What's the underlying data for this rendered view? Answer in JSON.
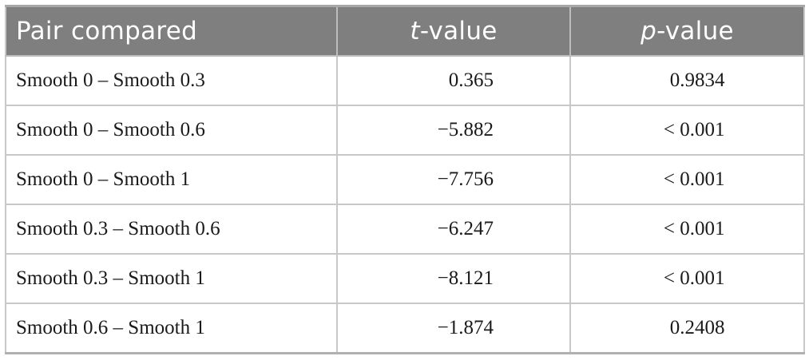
{
  "table": {
    "headers": {
      "pair": "Pair compared",
      "t_prefix": "t",
      "t_suffix": "-value",
      "p_prefix": "p",
      "p_suffix": "-value"
    },
    "rows": [
      {
        "pair": "Smooth 0 – Smooth 0.3",
        "t": "0.365",
        "p": "0.9834"
      },
      {
        "pair": "Smooth 0 – Smooth 0.6",
        "t": "−5.882",
        "p": "< 0.001"
      },
      {
        "pair": "Smooth 0 – Smooth 1",
        "t": "−7.756",
        "p": "< 0.001"
      },
      {
        "pair": "Smooth 0.3 – Smooth 0.6",
        "t": "−6.247",
        "p": "< 0.001"
      },
      {
        "pair": "Smooth 0.3 – Smooth 1",
        "t": "−8.121",
        "p": "< 0.001"
      },
      {
        "pair": "Smooth 0.6 – Smooth 1",
        "t": "−1.874",
        "p": "0.2408"
      }
    ]
  },
  "colors": {
    "header_bg": "#7f7f7f",
    "header_text": "#ffffff",
    "border": "#c8c8c8",
    "body_text": "#1a1a1a"
  }
}
